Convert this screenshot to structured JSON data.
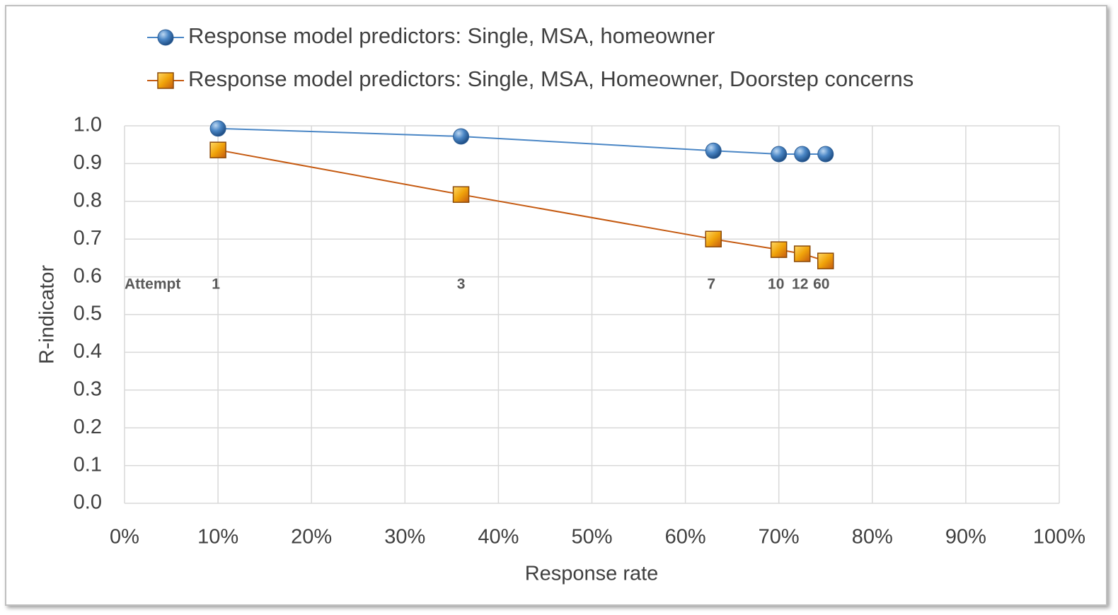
{
  "chart_data": {
    "type": "line",
    "x_label": "Response rate",
    "y_label": "R-indicator",
    "x": [
      10,
      36,
      63,
      70,
      72.5,
      75
    ],
    "series": [
      {
        "name": "Response model predictors: Single, MSA, homeowner",
        "color": "#4a86c5",
        "marker": "circle",
        "values": [
          0.993,
          0.972,
          0.934,
          0.925,
          0.925,
          0.925
        ]
      },
      {
        "name": "Response model predictors: Single, MSA, Homeowner, Doorstep concerns",
        "color": "#c55a11",
        "marker": "square",
        "values": [
          0.936,
          0.818,
          0.7,
          0.672,
          0.661,
          0.642
        ]
      }
    ],
    "annotation": "Attempt",
    "point_labels": [
      "1",
      "3",
      "7",
      "10",
      "12",
      "60"
    ],
    "xlim": [
      0,
      100
    ],
    "xticks": [
      {
        "value": 0,
        "label": "0%"
      },
      {
        "value": 10,
        "label": "10%"
      },
      {
        "value": 20,
        "label": "20%"
      },
      {
        "value": 30,
        "label": "30%"
      },
      {
        "value": 40,
        "label": "40%"
      },
      {
        "value": 50,
        "label": "50%"
      },
      {
        "value": 60,
        "label": "60%"
      },
      {
        "value": 70,
        "label": "70%"
      },
      {
        "value": 80,
        "label": "80%"
      },
      {
        "value": 90,
        "label": "90%"
      },
      {
        "value": 100,
        "label": "100%"
      }
    ],
    "ylim": [
      0,
      1
    ],
    "yticks": [
      {
        "value": 0,
        "label": "0.0"
      },
      0.1,
      0.2,
      0.3,
      0.4,
      0.5,
      0.6,
      0.7,
      0.8,
      0.9,
      {
        "value": 1,
        "label": "1.0"
      }
    ],
    "grid": true,
    "legend": "top"
  }
}
